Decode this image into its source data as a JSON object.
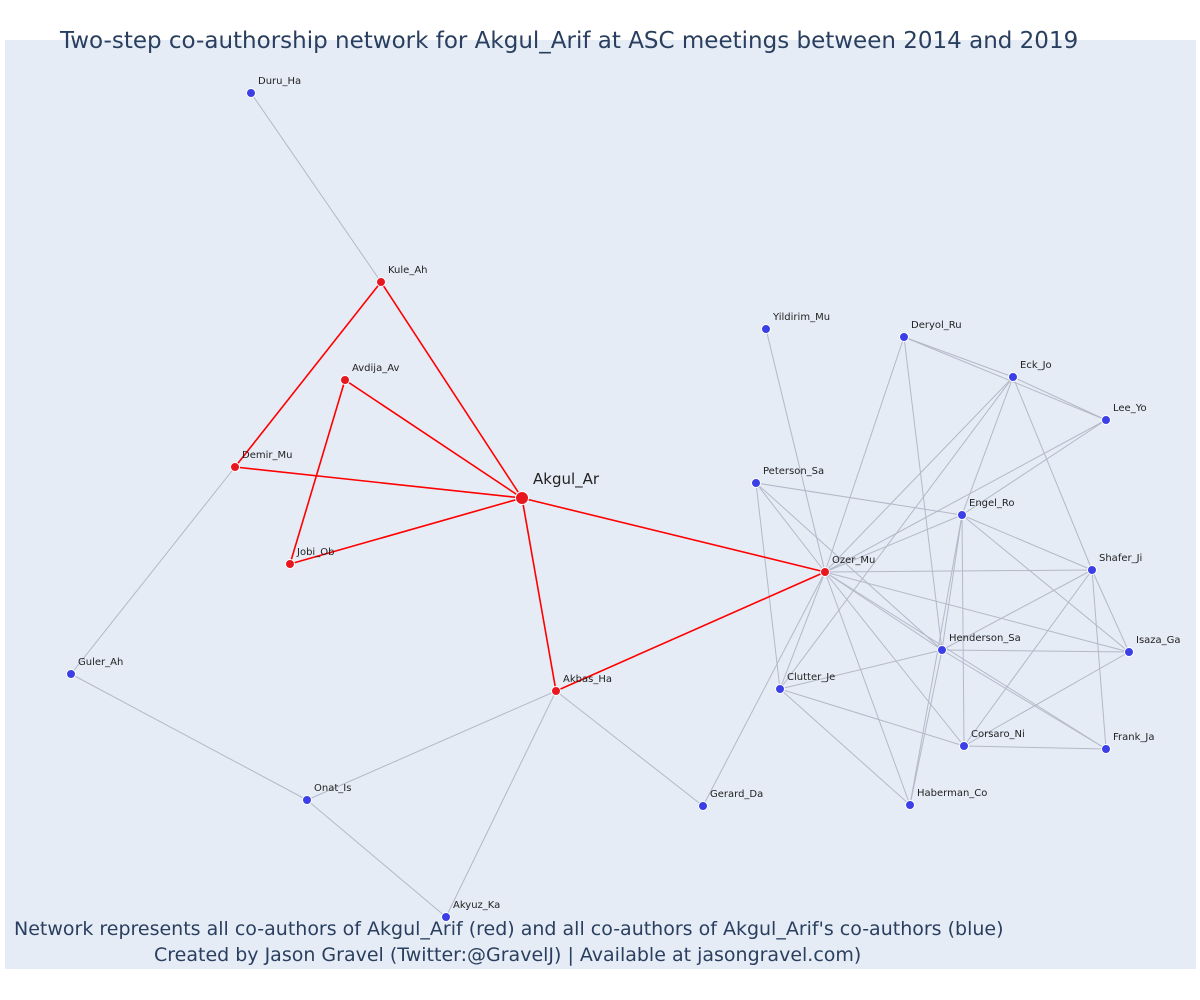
{
  "title": "Two-step co-authorship network for Akgul_Arif at ASC meetings between 2014 and 2019",
  "caption": {
    "line1": "Network represents all co-authors of Akgul_Arif (red) and all co-authors of Akgul_Arif's co-authors (blue)",
    "line2": "Created by Jason Gravel (Twitter:@GravelJ) | Available at jasongravel.com)"
  },
  "colors": {
    "first_degree": "#e8171f",
    "second_degree": "#3c3fe6",
    "red_edge": "#ff0000",
    "gray_edge": "#b4b8c8"
  },
  "nodes": [
    {
      "id": "Akgul_Ar",
      "group": "focal"
    },
    {
      "id": "Kule_Ah",
      "group": "first"
    },
    {
      "id": "Avdija_Av",
      "group": "first"
    },
    {
      "id": "Demir_Mu",
      "group": "first"
    },
    {
      "id": "Jobi_Ob",
      "group": "first"
    },
    {
      "id": "Akbas_Ha",
      "group": "first"
    },
    {
      "id": "Ozer_Mu",
      "group": "first"
    },
    {
      "id": "Duru_Ha",
      "group": "second"
    },
    {
      "id": "Guler_Ah",
      "group": "second"
    },
    {
      "id": "Onat_Is",
      "group": "second"
    },
    {
      "id": "Akyuz_Ka",
      "group": "second"
    },
    {
      "id": "Gerard_Da",
      "group": "second"
    },
    {
      "id": "Yildirim_Mu",
      "group": "second"
    },
    {
      "id": "Deryol_Ru",
      "group": "second"
    },
    {
      "id": "Eck_Jo",
      "group": "second"
    },
    {
      "id": "Lee_Yo",
      "group": "second"
    },
    {
      "id": "Peterson_Sa",
      "group": "second"
    },
    {
      "id": "Engel_Ro",
      "group": "second"
    },
    {
      "id": "Shafer_Ji",
      "group": "second"
    },
    {
      "id": "Isaza_Ga",
      "group": "second"
    },
    {
      "id": "Henderson_Sa",
      "group": "second"
    },
    {
      "id": "Clutter_Je",
      "group": "second"
    },
    {
      "id": "Corsaro_Ni",
      "group": "second"
    },
    {
      "id": "Frank_Ja",
      "group": "second"
    },
    {
      "id": "Haberman_Co",
      "group": "second"
    }
  ],
  "edges_red": [
    [
      "Akgul_Ar",
      "Kule_Ah"
    ],
    [
      "Akgul_Ar",
      "Avdija_Av"
    ],
    [
      "Akgul_Ar",
      "Demir_Mu"
    ],
    [
      "Akgul_Ar",
      "Jobi_Ob"
    ],
    [
      "Akgul_Ar",
      "Akbas_Ha"
    ],
    [
      "Akgul_Ar",
      "Ozer_Mu"
    ],
    [
      "Kule_Ah",
      "Demir_Mu"
    ],
    [
      "Avdija_Av",
      "Jobi_Ob"
    ],
    [
      "Akbas_Ha",
      "Ozer_Mu"
    ]
  ],
  "edges_gray": [
    [
      "Duru_Ha",
      "Kule_Ah"
    ],
    [
      "Demir_Mu",
      "Guler_Ah"
    ],
    [
      "Guler_Ah",
      "Onat_Is"
    ],
    [
      "Onat_Is",
      "Akyuz_Ka"
    ],
    [
      "Onat_Is",
      "Akbas_Ha"
    ],
    [
      "Akbas_Ha",
      "Akyuz_Ka"
    ],
    [
      "Akbas_Ha",
      "Gerard_Da"
    ],
    [
      "Ozer_Mu",
      "Yildirim_Mu"
    ],
    [
      "Ozer_Mu",
      "Deryol_Ru"
    ],
    [
      "Ozer_Mu",
      "Eck_Jo"
    ],
    [
      "Ozer_Mu",
      "Lee_Yo"
    ],
    [
      "Ozer_Mu",
      "Peterson_Sa"
    ],
    [
      "Ozer_Mu",
      "Engel_Ro"
    ],
    [
      "Ozer_Mu",
      "Shafer_Ji"
    ],
    [
      "Ozer_Mu",
      "Isaza_Ga"
    ],
    [
      "Ozer_Mu",
      "Henderson_Sa"
    ],
    [
      "Ozer_Mu",
      "Clutter_Je"
    ],
    [
      "Ozer_Mu",
      "Corsaro_Ni"
    ],
    [
      "Ozer_Mu",
      "Frank_Ja"
    ],
    [
      "Ozer_Mu",
      "Haberman_Co"
    ],
    [
      "Ozer_Mu",
      "Gerard_Da"
    ],
    [
      "Deryol_Ru",
      "Eck_Jo"
    ],
    [
      "Deryol_Ru",
      "Lee_Yo"
    ],
    [
      "Deryol_Ru",
      "Henderson_Sa"
    ],
    [
      "Eck_Jo",
      "Lee_Yo"
    ],
    [
      "Eck_Jo",
      "Engel_Ro"
    ],
    [
      "Eck_Jo",
      "Shafer_Ji"
    ],
    [
      "Eck_Jo",
      "Clutter_Je"
    ],
    [
      "Lee_Yo",
      "Engel_Ro"
    ],
    [
      "Peterson_Sa",
      "Engel_Ro"
    ],
    [
      "Peterson_Sa",
      "Clutter_Je"
    ],
    [
      "Peterson_Sa",
      "Henderson_Sa"
    ],
    [
      "Engel_Ro",
      "Shafer_Ji"
    ],
    [
      "Engel_Ro",
      "Isaza_Ga"
    ],
    [
      "Engel_Ro",
      "Henderson_Sa"
    ],
    [
      "Engel_Ro",
      "Corsaro_Ni"
    ],
    [
      "Engel_Ro",
      "Haberman_Co"
    ],
    [
      "Shafer_Ji",
      "Isaza_Ga"
    ],
    [
      "Shafer_Ji",
      "Henderson_Sa"
    ],
    [
      "Shafer_Ji",
      "Corsaro_Ni"
    ],
    [
      "Shafer_Ji",
      "Frank_Ja"
    ],
    [
      "Isaza_Ga",
      "Henderson_Sa"
    ],
    [
      "Isaza_Ga",
      "Corsaro_Ni"
    ],
    [
      "Henderson_Sa",
      "Clutter_Je"
    ],
    [
      "Henderson_Sa",
      "Frank_Ja"
    ],
    [
      "Henderson_Sa",
      "Haberman_Co"
    ],
    [
      "Clutter_Je",
      "Corsaro_Ni"
    ],
    [
      "Clutter_Je",
      "Haberman_Co"
    ],
    [
      "Corsaro_Ni",
      "Frank_Ja"
    ]
  ]
}
